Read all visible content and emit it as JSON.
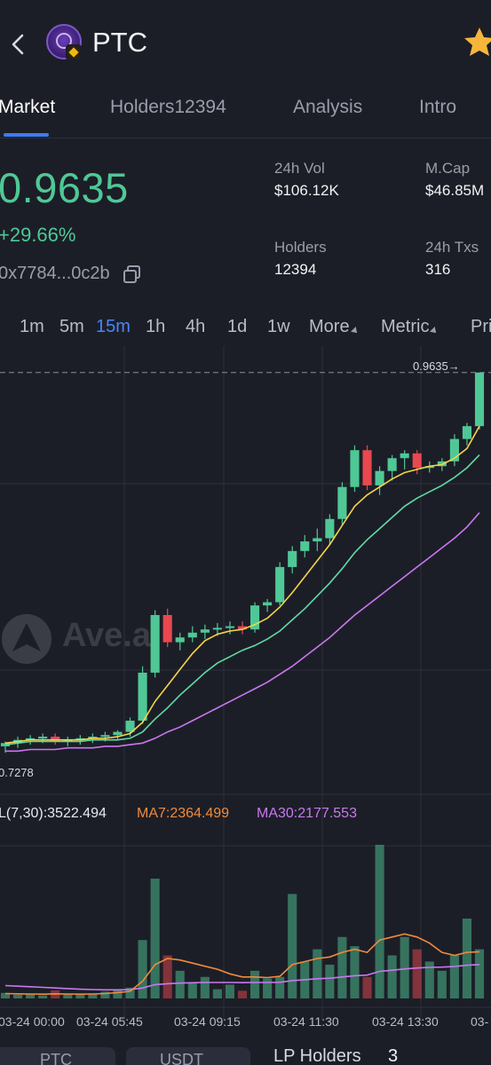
{
  "header": {
    "token_name": "PTC",
    "favorite_color": "#f5b73b"
  },
  "tabs": [
    {
      "label": "Market",
      "active": true
    },
    {
      "label": "Holders12394",
      "active": false
    },
    {
      "label": "Analysis",
      "active": false
    },
    {
      "label": "Intro",
      "active": false
    }
  ],
  "summary": {
    "price": "0.9635",
    "change": "+29.66%",
    "address": "0x7784...0c2b",
    "vol_label": "24h Vol",
    "vol_value": "$106.12K",
    "mcap_label": "M.Cap",
    "mcap_value": "$46.85M",
    "holders_label": "Holders",
    "holders_value": "12394",
    "txs_label": "24h Txs",
    "txs_value": "316"
  },
  "timeframes": [
    {
      "label": "1m",
      "active": false
    },
    {
      "label": "5m",
      "active": false
    },
    {
      "label": "15m",
      "active": true
    },
    {
      "label": "1h",
      "active": false
    },
    {
      "label": "4h",
      "active": false
    },
    {
      "label": "1d",
      "active": false
    },
    {
      "label": "1w",
      "active": false
    },
    {
      "label": "More",
      "active": false
    },
    {
      "label": "Metric",
      "active": false
    },
    {
      "label": "Pri",
      "active": false
    }
  ],
  "watermark": "Ave.ai",
  "indicators": {
    "vol": "L(7,30):3522.494",
    "ma7": "MA7:2364.499",
    "ma30": "MA30:2177.553"
  },
  "colors": {
    "up": "#4fc896",
    "down": "#e8484f",
    "ma_yellow": "#f5d547",
    "ma_green": "#5fdca4",
    "ma_purple": "#c978f0",
    "vol_ma_orange": "#f08a3c",
    "vol_ma_purple": "#c978f0",
    "active_blue": "#3d7bf5"
  },
  "chart_data": {
    "type": "candlestick",
    "last_price_label": "0.9635",
    "min_label": "0.7278",
    "x_tick_labels": [
      "03-24 00:00",
      "03-24 05:45",
      "03-24 09:15",
      "03-24 11:30",
      "03-24 13:30",
      "03-"
    ],
    "price_range": [
      0.7,
      0.98
    ],
    "candles": [
      [
        0.73,
        0.733,
        0.726,
        0.732
      ],
      [
        0.732,
        0.736,
        0.729,
        0.734
      ],
      [
        0.734,
        0.737,
        0.731,
        0.735
      ],
      [
        0.735,
        0.738,
        0.732,
        0.736
      ],
      [
        0.736,
        0.738,
        0.731,
        0.733
      ],
      [
        0.733,
        0.736,
        0.73,
        0.734
      ],
      [
        0.734,
        0.737,
        0.731,
        0.735
      ],
      [
        0.735,
        0.738,
        0.732,
        0.736
      ],
      [
        0.736,
        0.739,
        0.733,
        0.737
      ],
      [
        0.737,
        0.74,
        0.734,
        0.739
      ],
      [
        0.739,
        0.748,
        0.736,
        0.746
      ],
      [
        0.746,
        0.78,
        0.744,
        0.776
      ],
      [
        0.776,
        0.815,
        0.773,
        0.812
      ],
      [
        0.812,
        0.816,
        0.792,
        0.795
      ],
      [
        0.795,
        0.801,
        0.79,
        0.798
      ],
      [
        0.798,
        0.805,
        0.795,
        0.801
      ],
      [
        0.801,
        0.806,
        0.797,
        0.803
      ],
      [
        0.803,
        0.807,
        0.799,
        0.804
      ],
      [
        0.804,
        0.808,
        0.8,
        0.805
      ],
      [
        0.805,
        0.808,
        0.8,
        0.803
      ],
      [
        0.803,
        0.82,
        0.801,
        0.818
      ],
      [
        0.818,
        0.822,
        0.814,
        0.82
      ],
      [
        0.82,
        0.845,
        0.818,
        0.842
      ],
      [
        0.842,
        0.855,
        0.838,
        0.852
      ],
      [
        0.852,
        0.862,
        0.848,
        0.858
      ],
      [
        0.858,
        0.866,
        0.852,
        0.86
      ],
      [
        0.86,
        0.875,
        0.856,
        0.872
      ],
      [
        0.872,
        0.895,
        0.868,
        0.892
      ],
      [
        0.892,
        0.918,
        0.889,
        0.915
      ],
      [
        0.915,
        0.918,
        0.89,
        0.893
      ],
      [
        0.893,
        0.905,
        0.887,
        0.902
      ],
      [
        0.902,
        0.912,
        0.896,
        0.91
      ],
      [
        0.91,
        0.915,
        0.903,
        0.913
      ],
      [
        0.913,
        0.915,
        0.9,
        0.904
      ],
      [
        0.904,
        0.908,
        0.901,
        0.905
      ],
      [
        0.905,
        0.91,
        0.902,
        0.908
      ],
      [
        0.908,
        0.925,
        0.905,
        0.922
      ],
      [
        0.922,
        0.932,
        0.918,
        0.93
      ],
      [
        0.93,
        0.962,
        0.928,
        0.9635
      ]
    ],
    "ma_fast": [
      0.732,
      0.733,
      0.734,
      0.734,
      0.734,
      0.734,
      0.734,
      0.735,
      0.735,
      0.736,
      0.738,
      0.745,
      0.758,
      0.768,
      0.778,
      0.788,
      0.796,
      0.8,
      0.802,
      0.803,
      0.806,
      0.81,
      0.817,
      0.826,
      0.836,
      0.846,
      0.856,
      0.868,
      0.88,
      0.887,
      0.892,
      0.897,
      0.901,
      0.903,
      0.905,
      0.906,
      0.91,
      0.916,
      0.93
    ],
    "ma_mid": [
      0.731,
      0.732,
      0.733,
      0.733,
      0.733,
      0.733,
      0.733,
      0.734,
      0.734,
      0.734,
      0.735,
      0.739,
      0.747,
      0.754,
      0.762,
      0.769,
      0.776,
      0.782,
      0.786,
      0.79,
      0.793,
      0.797,
      0.802,
      0.809,
      0.816,
      0.824,
      0.832,
      0.841,
      0.851,
      0.859,
      0.866,
      0.873,
      0.88,
      0.885,
      0.889,
      0.893,
      0.898,
      0.904,
      0.912
    ],
    "ma_slow": [
      0.727,
      0.727,
      0.728,
      0.728,
      0.728,
      0.729,
      0.729,
      0.729,
      0.73,
      0.73,
      0.731,
      0.732,
      0.735,
      0.739,
      0.742,
      0.746,
      0.75,
      0.754,
      0.758,
      0.762,
      0.766,
      0.77,
      0.775,
      0.78,
      0.786,
      0.792,
      0.798,
      0.805,
      0.812,
      0.818,
      0.824,
      0.83,
      0.836,
      0.842,
      0.848,
      0.854,
      0.86,
      0.867,
      0.876
    ],
    "volume_range": [
      0,
      5200
    ],
    "volumes": [
      180,
      120,
      150,
      100,
      260,
      140,
      120,
      160,
      220,
      300,
      350,
      1900,
      3900,
      1400,
      900,
      500,
      700,
      300,
      450,
      250,
      900,
      650,
      700,
      3400,
      1200,
      1600,
      1100,
      2000,
      1700,
      700,
      5000,
      1400,
      2000,
      1600,
      1200,
      900,
      1400,
      2600,
      1600
    ],
    "vol_ma_fast": [
      160,
      150,
      145,
      140,
      150,
      145,
      140,
      145,
      160,
      190,
      230,
      560,
      1100,
      1300,
      1250,
      1150,
      1050,
      950,
      800,
      700,
      700,
      680,
      720,
      1100,
      1200,
      1300,
      1350,
      1500,
      1600,
      1500,
      1900,
      2000,
      2100,
      2000,
      1800,
      1500,
      1400,
      1500,
      1520
    ],
    "vol_ma_slow": [
      420,
      400,
      380,
      360,
      340,
      320,
      300,
      290,
      280,
      280,
      285,
      340,
      450,
      480,
      500,
      510,
      520,
      520,
      520,
      515,
      520,
      520,
      525,
      580,
      610,
      640,
      660,
      700,
      740,
      760,
      880,
      920,
      960,
      990,
      1010,
      1020,
      1040,
      1080,
      1100
    ]
  }
}
